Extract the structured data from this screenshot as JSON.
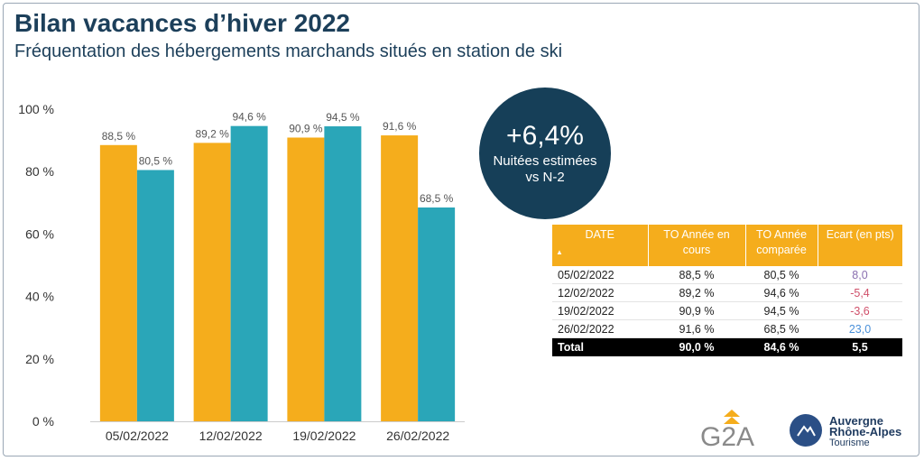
{
  "header": {
    "title": "Bilan vacances d’hiver 2022",
    "subtitle": "Fréquentation des hébergements marchands situés en station de ski"
  },
  "badge": {
    "value": "+6,4%",
    "label_line1": "Nuitées estimées",
    "label_line2": "vs N-2"
  },
  "colors": {
    "current": "#f5ad1c",
    "compared": "#2aa6b8",
    "positive": "#4a90d9",
    "negative": "#d0506a",
    "neutral": "#8a6fb0"
  },
  "chart_data": {
    "type": "bar",
    "categories": [
      "05/02/2022",
      "12/02/2022",
      "19/02/2022",
      "26/02/2022"
    ],
    "series": [
      {
        "values": [
          88.5,
          89.2,
          90.9,
          91.6
        ],
        "labels": [
          "88,5 %",
          "89,2 %",
          "90,9 %",
          "91,6 %"
        ]
      },
      {
        "values": [
          80.5,
          94.6,
          94.5,
          68.5
        ],
        "labels": [
          "80,5 %",
          "94,6 %",
          "94,5 %",
          "68,5 %"
        ]
      }
    ],
    "ylim": [
      0,
      100
    ],
    "yticks": [
      0,
      20,
      40,
      60,
      80,
      100
    ],
    "ytick_labels": [
      "0 %",
      "20 %",
      "40 %",
      "60 %",
      "80 %",
      "100 %"
    ],
    "grid": false,
    "legend": "none"
  },
  "table": {
    "headers": [
      "DATE",
      "TO Année en cours",
      "TO Année comparée",
      "Ecart (en pts)"
    ],
    "sort_indicator": "▲",
    "rows": [
      {
        "date": "05/02/2022",
        "current": "88,5 %",
        "compared": "80,5 %",
        "ecart": "8,0",
        "ecart_color": "#8a6fb0"
      },
      {
        "date": "12/02/2022",
        "current": "89,2 %",
        "compared": "94,6 %",
        "ecart": "-5,4",
        "ecart_color": "#d0506a"
      },
      {
        "date": "19/02/2022",
        "current": "90,9 %",
        "compared": "94,5 %",
        "ecart": "-3,6",
        "ecart_color": "#d0506a"
      },
      {
        "date": "26/02/2022",
        "current": "91,6 %",
        "compared": "68,5 %",
        "ecart": "23,0",
        "ecart_color": "#4a90d9"
      }
    ],
    "total": {
      "label": "Total",
      "current": "90,0 %",
      "compared": "84,6 %",
      "ecart": "5,5"
    }
  },
  "logos": {
    "g2a": "G2A",
    "ara_line1": "Auvergne",
    "ara_line2": "Rhône-Alpes",
    "ara_line3": "Tourisme"
  }
}
